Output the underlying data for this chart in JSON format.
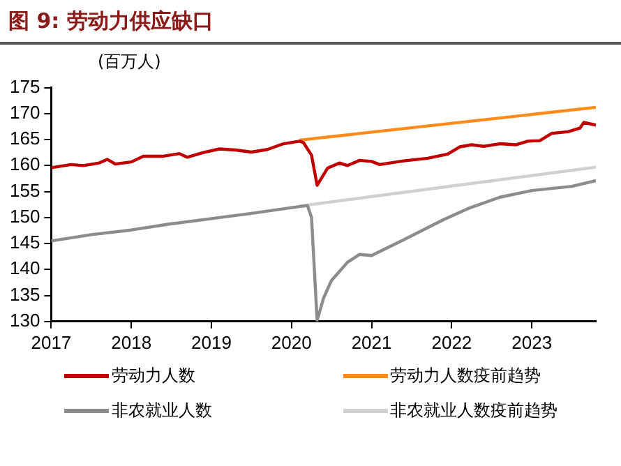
{
  "chart_data": {
    "type": "line",
    "title": "图 9: 劳动力供应缺口",
    "ylabel": "(百万人)",
    "xlim": [
      2017,
      2023.8
    ],
    "xticks": [
      2017,
      2018,
      2019,
      2020,
      2021,
      2022,
      2023
    ],
    "ylim": [
      130,
      175
    ],
    "yticks": [
      130,
      135,
      140,
      145,
      150,
      155,
      160,
      165,
      170,
      175
    ],
    "grid": false,
    "legend": "bottom",
    "marker": "none",
    "line_style": "solid",
    "series": [
      {
        "name": "劳动力人数",
        "color": "#c00000",
        "x": [
          2017.0,
          2017.25,
          2017.4,
          2017.6,
          2017.7,
          2017.8,
          2018.0,
          2018.15,
          2018.4,
          2018.6,
          2018.7,
          2018.9,
          2019.1,
          2019.3,
          2019.5,
          2019.7,
          2019.9,
          2020.1,
          2020.15,
          2020.25,
          2020.32,
          2020.45,
          2020.6,
          2020.7,
          2020.85,
          2021.0,
          2021.1,
          2021.4,
          2021.7,
          2021.95,
          2022.1,
          2022.25,
          2022.4,
          2022.6,
          2022.8,
          2022.95,
          2023.1,
          2023.25,
          2023.45,
          2023.6,
          2023.65,
          2023.8
        ],
        "values": [
          159.6,
          160.2,
          160.0,
          160.5,
          161.2,
          160.3,
          160.7,
          161.8,
          161.8,
          162.3,
          161.6,
          162.5,
          163.2,
          163.0,
          162.6,
          163.1,
          164.2,
          164.7,
          164.4,
          162,
          156.2,
          159.5,
          160.5,
          160.0,
          161.0,
          160.8,
          160.2,
          160.9,
          161.4,
          162.2,
          163.6,
          164.0,
          163.7,
          164.2,
          164.0,
          164.7,
          164.8,
          166.2,
          166.5,
          167.2,
          168.3,
          167.8
        ]
      },
      {
        "name": "劳动力人数疫前趋势",
        "color": "#ff8c1a",
        "x": [
          2020.1,
          2023.8
        ],
        "values": [
          164.9,
          171.2
        ]
      },
      {
        "name": "非农就业人数",
        "color": "#8c8c8c",
        "x": [
          2017.0,
          2017.5,
          2018.0,
          2018.5,
          2019.0,
          2019.5,
          2020.0,
          2020.2,
          2020.25,
          2020.32,
          2020.4,
          2020.5,
          2020.7,
          2020.85,
          2021.0,
          2021.4,
          2021.9,
          2022.2,
          2022.6,
          2023.0,
          2023.5,
          2023.8
        ],
        "values": [
          145.5,
          146.7,
          147.6,
          148.8,
          149.8,
          150.8,
          151.9,
          152.3,
          150,
          130.2,
          134.5,
          137.9,
          141.4,
          142.9,
          142.7,
          145.7,
          149.6,
          151.7,
          153.9,
          155.2,
          156.0,
          157.1
        ]
      },
      {
        "name": "非农就业人数疫前趋势",
        "color": "#d0d0d0",
        "x": [
          2020.1,
          2023.8
        ],
        "values": [
          152.2,
          159.7
        ]
      }
    ]
  }
}
